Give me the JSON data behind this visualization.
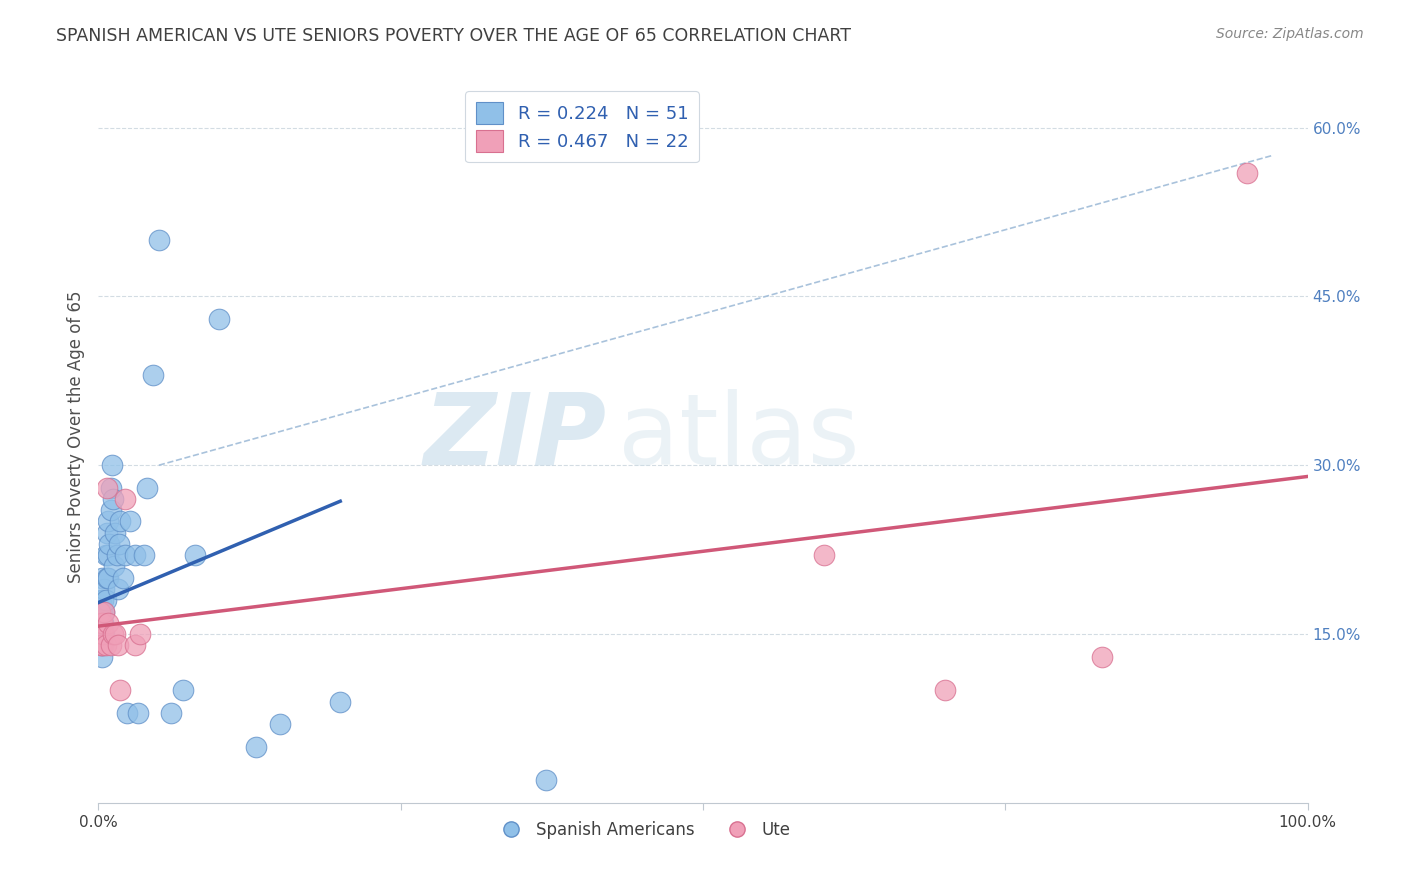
{
  "title": "SPANISH AMERICAN VS UTE SENIORS POVERTY OVER THE AGE OF 65 CORRELATION CHART",
  "source": "Source: ZipAtlas.com",
  "ylabel": "Seniors Poverty Over the Age of 65",
  "xlim": [
    0,
    1.0
  ],
  "ylim": [
    0,
    0.65
  ],
  "legend_entries": [
    {
      "label": "R = 0.224   N = 51",
      "color": "#a8c8f0"
    },
    {
      "label": "R = 0.467   N = 22",
      "color": "#f0a8c0"
    }
  ],
  "blue_scatter_x": [
    0.001,
    0.001,
    0.002,
    0.002,
    0.002,
    0.003,
    0.003,
    0.003,
    0.003,
    0.004,
    0.004,
    0.004,
    0.005,
    0.005,
    0.005,
    0.006,
    0.006,
    0.007,
    0.007,
    0.008,
    0.008,
    0.008,
    0.009,
    0.01,
    0.01,
    0.011,
    0.012,
    0.013,
    0.014,
    0.015,
    0.016,
    0.017,
    0.018,
    0.02,
    0.022,
    0.024,
    0.026,
    0.03,
    0.033,
    0.038,
    0.04,
    0.045,
    0.05,
    0.06,
    0.07,
    0.08,
    0.1,
    0.13,
    0.15,
    0.2,
    0.37
  ],
  "blue_scatter_y": [
    0.15,
    0.17,
    0.14,
    0.16,
    0.18,
    0.13,
    0.15,
    0.17,
    0.2,
    0.14,
    0.16,
    0.18,
    0.15,
    0.17,
    0.19,
    0.18,
    0.22,
    0.2,
    0.24,
    0.2,
    0.22,
    0.25,
    0.23,
    0.26,
    0.28,
    0.3,
    0.27,
    0.21,
    0.24,
    0.22,
    0.19,
    0.23,
    0.25,
    0.2,
    0.22,
    0.08,
    0.25,
    0.22,
    0.08,
    0.22,
    0.28,
    0.38,
    0.5,
    0.08,
    0.1,
    0.22,
    0.43,
    0.05,
    0.07,
    0.09,
    0.02
  ],
  "pink_scatter_x": [
    0.001,
    0.001,
    0.002,
    0.003,
    0.003,
    0.004,
    0.005,
    0.006,
    0.007,
    0.008,
    0.01,
    0.012,
    0.014,
    0.016,
    0.018,
    0.022,
    0.03,
    0.034,
    0.6,
    0.7,
    0.83,
    0.95
  ],
  "pink_scatter_y": [
    0.15,
    0.17,
    0.14,
    0.14,
    0.16,
    0.15,
    0.17,
    0.14,
    0.28,
    0.16,
    0.14,
    0.15,
    0.15,
    0.14,
    0.1,
    0.27,
    0.14,
    0.15,
    0.22,
    0.1,
    0.13,
    0.56
  ],
  "blue_line_x": [
    0.0,
    0.2
  ],
  "blue_line_y": [
    0.178,
    0.268
  ],
  "pink_line_x": [
    0.0,
    1.0
  ],
  "pink_line_y": [
    0.157,
    0.29
  ],
  "diagonal_line_x": [
    0.05,
    0.97
  ],
  "diagonal_line_y": [
    0.3,
    0.575
  ],
  "watermark_zip": "ZIP",
  "watermark_atlas": "atlas",
  "scatter_size": 220,
  "blue_color": "#90c0e8",
  "pink_color": "#f0a0b8",
  "blue_edge": "#6090c8",
  "pink_edge": "#d87090",
  "blue_line_color": "#3060b0",
  "pink_line_color": "#d05878",
  "diagonal_color": "#a0bcd8",
  "background": "#ffffff",
  "grid_color": "#c8d4dc",
  "title_color": "#404040",
  "source_color": "#888888"
}
